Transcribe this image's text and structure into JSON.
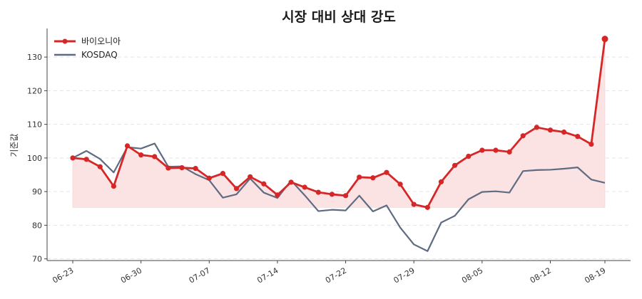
{
  "chart_data": {
    "type": "line",
    "title": "시장 대비 상대 강도",
    "xlabel": "",
    "ylabel": "기준값",
    "ylim": [
      69.5,
      138.5
    ],
    "yticks": [
      70,
      80,
      90,
      100,
      110,
      120,
      130
    ],
    "grid": true,
    "legend_position": "top-left",
    "baseline_fill": 85.3,
    "x_tick_labels": [
      {
        "index": 0,
        "label": "06-23"
      },
      {
        "index": 5,
        "label": "06-30"
      },
      {
        "index": 10,
        "label": "07-07"
      },
      {
        "index": 15,
        "label": "07-14"
      },
      {
        "index": 20,
        "label": "07-22"
      },
      {
        "index": 25,
        "label": "07-29"
      },
      {
        "index": 30,
        "label": "08-05"
      },
      {
        "index": 35,
        "label": "08-12"
      },
      {
        "index": 39,
        "label": "08-19"
      }
    ],
    "x_count": 40,
    "series": [
      {
        "name": "바이오니아",
        "color": "#d62728",
        "markers": true,
        "values": [
          100,
          99.6,
          97.4,
          91.6,
          103.6,
          100.9,
          100.4,
          97.0,
          97.1,
          96.9,
          94.0,
          95.4,
          90.9,
          94.4,
          92.3,
          89.0,
          92.8,
          91.3,
          89.8,
          89.2,
          88.8,
          94.3,
          94.1,
          95.7,
          92.2,
          86.2,
          85.3,
          92.9,
          97.8,
          100.5,
          102.3,
          102.3,
          101.8,
          106.6,
          109.1,
          108.3,
          107.7,
          106.4,
          104.1,
          135.4
        ]
      },
      {
        "name": "KOSDAQ",
        "color": "#5f6b82",
        "markers": false,
        "values": [
          100,
          102.1,
          99.7,
          95.7,
          103.2,
          102.8,
          104.3,
          97.4,
          97.5,
          95.2,
          93.4,
          88.2,
          89.2,
          93.9,
          89.7,
          88.1,
          93.3,
          88.9,
          84.2,
          84.6,
          84.4,
          88.8,
          84.1,
          85.9,
          79.3,
          74.3,
          72.3,
          80.8,
          82.8,
          87.7,
          89.9,
          90.1,
          89.7,
          96.1,
          96.4,
          96.5,
          96.8,
          97.2,
          93.6,
          92.6
        ]
      }
    ]
  },
  "colors": {
    "fill": "#fbe3e3",
    "grid": "#e4e4e4",
    "axis": "#444444"
  }
}
